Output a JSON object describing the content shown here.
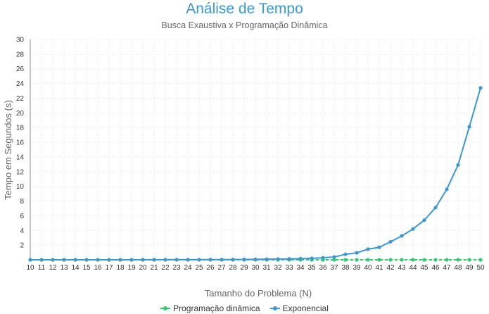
{
  "title": "Análise de Tempo",
  "subtitle": "Busca Exaustiva x Programação Dinâmica",
  "chart_data": {
    "type": "line",
    "title": "Análise de Tempo",
    "subtitle": "Busca Exaustiva x Programação Dinâmica",
    "xlabel": "Tamanho do Problema (N)",
    "ylabel": "Tempo em Segundos (s)",
    "categories": [
      10,
      11,
      12,
      13,
      14,
      15,
      16,
      17,
      18,
      19,
      20,
      21,
      22,
      23,
      24,
      25,
      26,
      27,
      28,
      29,
      30,
      31,
      32,
      33,
      34,
      35,
      36,
      37,
      38,
      39,
      40,
      41,
      42,
      43,
      44,
      45,
      46,
      47,
      48,
      49,
      50
    ],
    "ylim": [
      0,
      30
    ],
    "yticks": [
      2,
      4,
      6,
      8,
      10,
      12,
      14,
      16,
      18,
      20,
      22,
      24,
      26,
      28,
      30
    ],
    "grid": true,
    "legend_position": "bottom",
    "series": [
      {
        "name": "Programação dinâmica",
        "color": "#2ecc71",
        "values": [
          0,
          0,
          0,
          0,
          0,
          0,
          0,
          0,
          0,
          0,
          0,
          0,
          0,
          0,
          0,
          0,
          0,
          0,
          0,
          0,
          0,
          0,
          0,
          0,
          0,
          0,
          0,
          0,
          0,
          0,
          0,
          0,
          0,
          0,
          0,
          0,
          0,
          0,
          0,
          0,
          0
        ]
      },
      {
        "name": "Exponencial",
        "color": "#3a98d4",
        "values": [
          0,
          0,
          0,
          0,
          0,
          0,
          0,
          0,
          0,
          0,
          0.01,
          0.01,
          0.01,
          0.02,
          0.02,
          0.02,
          0.03,
          0.03,
          0.04,
          0.05,
          0.06,
          0.08,
          0.1,
          0.12,
          0.16,
          0.2,
          0.28,
          0.38,
          0.75,
          0.95,
          1.45,
          1.7,
          2.45,
          3.25,
          4.2,
          5.4,
          7.1,
          9.6,
          12.9,
          18.1,
          23.4
        ]
      }
    ]
  }
}
